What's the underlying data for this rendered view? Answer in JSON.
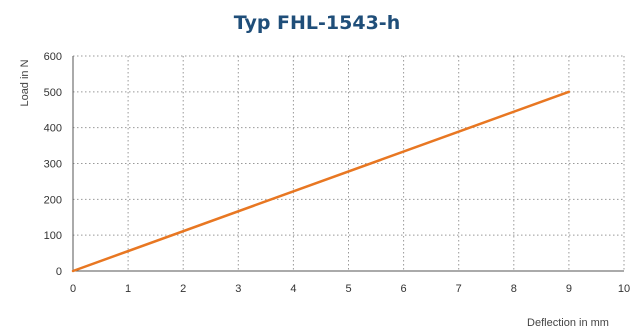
{
  "chart_data": {
    "type": "line",
    "title": "Typ FHL-1543-h",
    "xlabel": "Deflection in mm",
    "ylabel": "Load in N",
    "xlim": [
      0,
      10
    ],
    "ylim": [
      0,
      600
    ],
    "x_ticks": [
      "0",
      "1",
      "2",
      "3",
      "4",
      "5",
      "6",
      "7",
      "8",
      "9",
      "10"
    ],
    "y_ticks": [
      "0",
      "100",
      "200",
      "300",
      "400",
      "500",
      "600"
    ],
    "grid": true,
    "series": [
      {
        "x": [
          0,
          9
        ],
        "y": [
          0,
          500
        ],
        "color": "#e87722"
      }
    ]
  },
  "colors": {
    "title": "#1f4e79",
    "grid": "#999999",
    "axis": "#555555"
  }
}
